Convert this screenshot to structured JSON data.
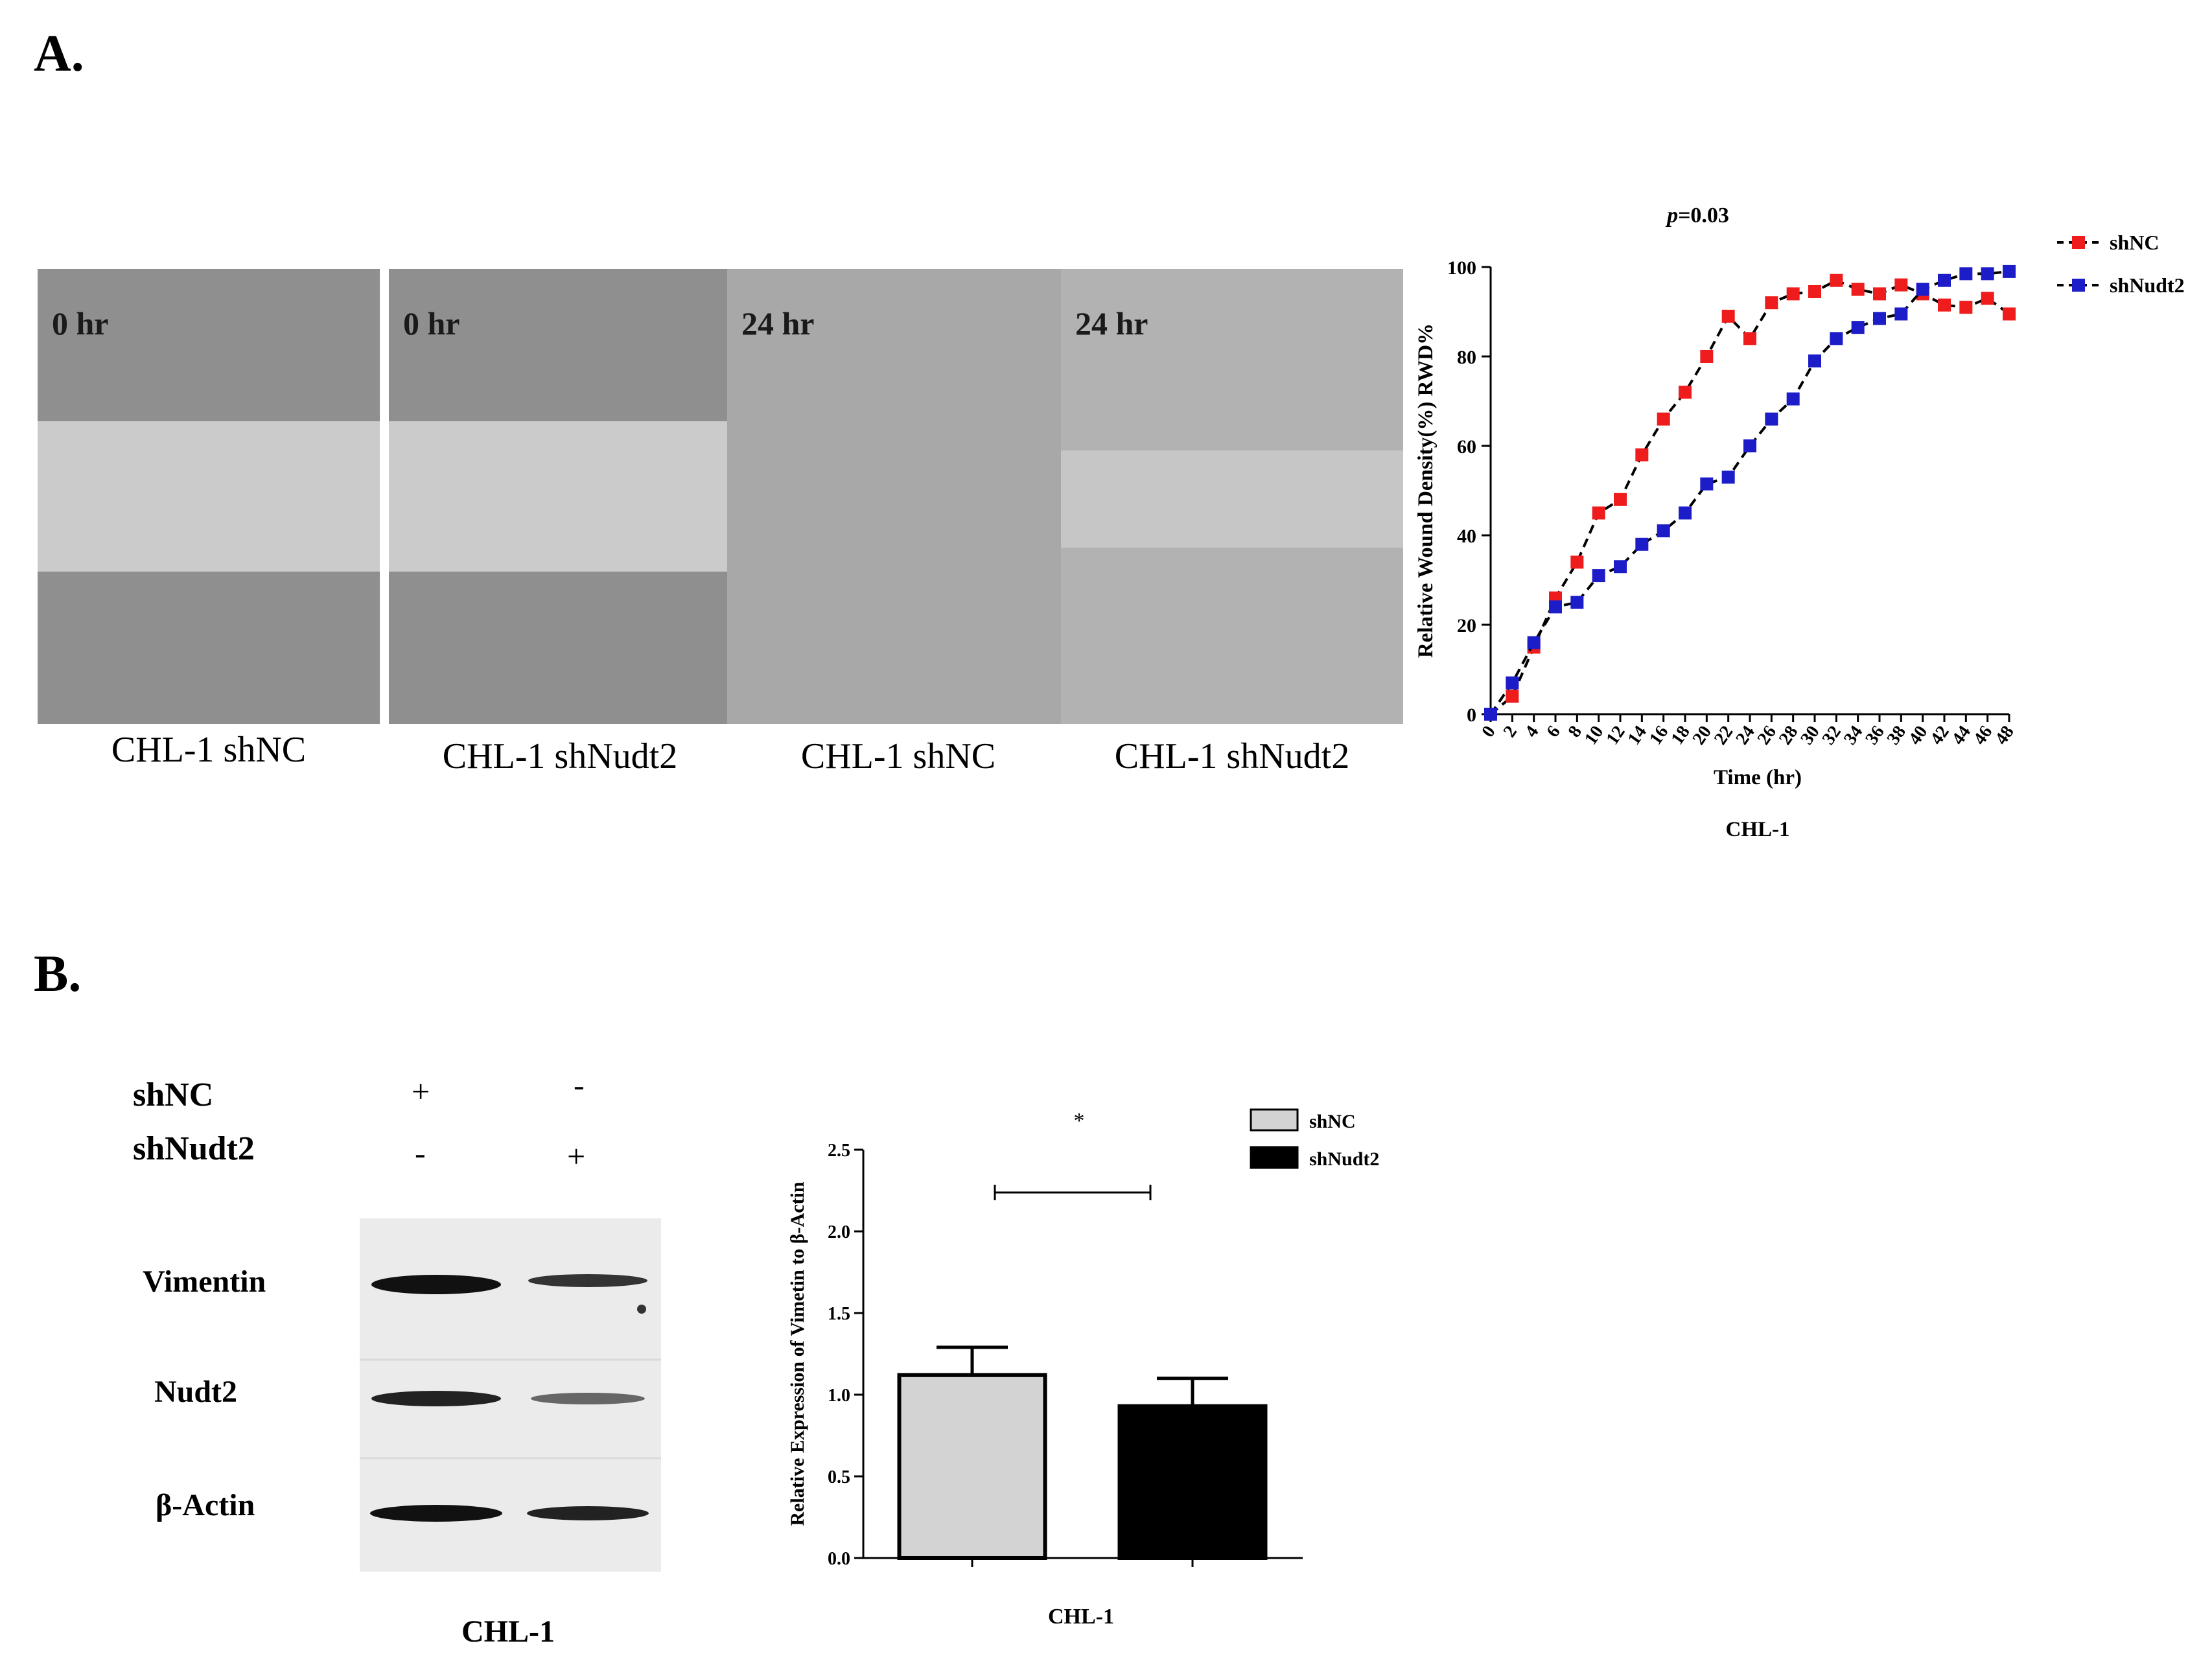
{
  "panel_a": {
    "label": "A.",
    "images": [
      {
        "time": "0 hr",
        "caption": "CHL-1 shNC",
        "state": "open"
      },
      {
        "time": "0 hr",
        "caption": "CHL-1 shNudt2",
        "state": "open"
      },
      {
        "time": "24 hr",
        "caption": "CHL-1 shNC",
        "state": "closed"
      },
      {
        "time": "24 hr",
        "caption": "CHL-1 shNudt2",
        "state": "partial"
      }
    ]
  },
  "panel_b": {
    "label": "B.",
    "blot": {
      "row_labels": [
        "shNC",
        "shNudt2"
      ],
      "signs": [
        [
          "+",
          "-"
        ],
        [
          "-",
          "+"
        ]
      ],
      "band_labels": [
        "Vimentin",
        "Nudt2",
        "β-Actin"
      ],
      "caption": "CHL-1"
    }
  },
  "chart_data": [
    {
      "type": "line",
      "title": "p=0.03",
      "title_prefix": "p",
      "title_suffix": "=0.03",
      "xlabel": "Time (hr)",
      "ylabel": "Relative Wound Density(%) RWD%",
      "caption": "CHL-1",
      "xlim": [
        0,
        48
      ],
      "ylim": [
        0,
        100
      ],
      "xticks": [
        0,
        2,
        4,
        6,
        8,
        10,
        12,
        14,
        16,
        18,
        20,
        22,
        24,
        26,
        28,
        30,
        32,
        34,
        36,
        38,
        40,
        42,
        44,
        46,
        48
      ],
      "yticks": [
        0,
        20,
        40,
        60,
        80,
        100
      ],
      "legend_position": "top-right",
      "x": [
        0,
        2,
        4,
        6,
        8,
        10,
        12,
        14,
        16,
        18,
        20,
        22,
        24,
        26,
        28,
        30,
        32,
        34,
        36,
        38,
        40,
        42,
        44,
        46,
        48
      ],
      "series": [
        {
          "name": "shNC",
          "color": "#ee1c1c",
          "values": [
            0,
            4,
            15,
            26,
            34,
            45,
            48,
            58,
            66,
            72,
            80,
            89,
            84,
            92,
            94,
            94.5,
            97,
            95,
            94,
            96,
            94,
            91.5,
            91,
            93,
            89.5
          ]
        },
        {
          "name": "shNudt2",
          "color": "#1c1cc8",
          "values": [
            0,
            7,
            16,
            24,
            25,
            31,
            33,
            38,
            41,
            45,
            51.5,
            53,
            60,
            66,
            70.5,
            79,
            84,
            86.5,
            88.5,
            89.5,
            95,
            97,
            98.5,
            98.5,
            99
          ]
        }
      ]
    },
    {
      "type": "bar",
      "title": "",
      "xlabel": "CHL-1",
      "ylabel": "Relative Expression of Vimetin to β-Actin",
      "ylim": [
        0,
        2.5
      ],
      "yticks": [
        0.0,
        0.5,
        1.0,
        1.5,
        2.0,
        2.5
      ],
      "ytick_labels": [
        "0.0",
        "0.5",
        "1.0",
        "1.5",
        "2.0",
        "2.5"
      ],
      "legend_position": "top-right",
      "significance": "*",
      "series": [
        {
          "name": "shNC",
          "value": 1.12,
          "error": 0.17,
          "color": "#d3d3d3"
        },
        {
          "name": "shNudt2",
          "value": 0.93,
          "error": 0.17,
          "color": "#000000"
        }
      ]
    }
  ]
}
